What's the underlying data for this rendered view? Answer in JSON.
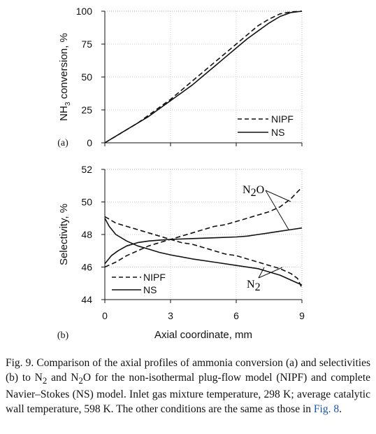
{
  "figure": {
    "caption": {
      "label": "Fig. 9.",
      "pre": "Comparison of the axial profiles of ammonia conversion (a) and selectivities (b) to N",
      "sub1": "2",
      "mid1": " and N",
      "sub2": "2",
      "mid2": "O for the non-isothermal plug-flow model (NIPF) and complete Navier–Stokes (NS) model. Inlet gas mixture temperature, 298 K; average catalytic wall temperature, 598 K. The other conditions are the same as those in ",
      "link": "Fig. 8",
      "post": "."
    }
  },
  "chart_data": [
    {
      "panel": "(a)",
      "type": "line",
      "ylabel_main": "NH",
      "ylabel_sub": "3",
      "ylabel_rest": " conversion, %",
      "xlabel": "",
      "xlim": [
        0,
        9
      ],
      "ylim": [
        0,
        100
      ],
      "yticks": [
        "0",
        "25",
        "50",
        "75",
        "100"
      ],
      "grid": true,
      "legend_position": "bottom-right",
      "series": [
        {
          "name": "NIPF",
          "style": "dashed",
          "x": [
            0,
            0.5,
            1,
            1.5,
            2,
            2.5,
            3,
            3.5,
            4,
            4.5,
            5,
            5.5,
            6,
            6.5,
            7,
            7.5,
            8,
            8.5,
            9
          ],
          "y": [
            0,
            5,
            10,
            15,
            21,
            27,
            33,
            40,
            47,
            54,
            61,
            68,
            75,
            82,
            89,
            94,
            98,
            99.5,
            100
          ]
        },
        {
          "name": "NS",
          "style": "solid",
          "x": [
            0,
            0.5,
            1,
            1.5,
            2,
            2.5,
            3,
            3.5,
            4,
            4.5,
            5,
            5.5,
            6,
            6.5,
            7,
            7.5,
            8,
            8.5,
            9
          ],
          "y": [
            0,
            5,
            10,
            15,
            20,
            26,
            32,
            38,
            44,
            51,
            58,
            65,
            72,
            79,
            85,
            91,
            96,
            99,
            100
          ]
        }
      ]
    },
    {
      "panel": "(b)",
      "type": "line",
      "ylabel": "Selectivity, %",
      "xlabel": "Axial coordinate, mm",
      "xlim": [
        0,
        9
      ],
      "ylim": [
        44,
        52
      ],
      "xticks": [
        "0",
        "3",
        "6",
        "9"
      ],
      "yticks": [
        "44",
        "46",
        "48",
        "50",
        "52"
      ],
      "grid": true,
      "legend_position": "bottom-left",
      "annotations": [
        {
          "label": "N",
          "sub": "2",
          "sup": "O"
        },
        {
          "label": "N",
          "sub": "2"
        }
      ],
      "series": [
        {
          "name": "NIPF",
          "curve": "N2O",
          "style": "dashed",
          "x": [
            0,
            0.5,
            1,
            1.5,
            2,
            2.5,
            3,
            3.5,
            4,
            4.5,
            5,
            5.5,
            6,
            6.5,
            7,
            7.5,
            8,
            8.5,
            9
          ],
          "y": [
            46.0,
            46.3,
            46.7,
            47.0,
            47.3,
            47.5,
            47.7,
            47.9,
            48.1,
            48.3,
            48.5,
            48.6,
            48.8,
            49.0,
            49.2,
            49.4,
            49.7,
            50.2,
            50.9
          ]
        },
        {
          "name": "NIPF",
          "curve": "N2",
          "style": "dashed",
          "x": [
            0,
            0.5,
            1,
            1.5,
            2,
            2.5,
            3,
            3.5,
            4,
            4.5,
            5,
            5.5,
            6,
            6.5,
            7,
            7.5,
            8,
            8.5,
            8.8,
            9
          ],
          "y": [
            49.1,
            48.7,
            48.5,
            48.3,
            48.1,
            47.9,
            47.7,
            47.5,
            47.4,
            47.2,
            47.0,
            46.8,
            46.7,
            46.5,
            46.3,
            46.1,
            45.9,
            45.6,
            45.3,
            44.7
          ]
        },
        {
          "name": "NS",
          "curve": "N2O",
          "style": "solid",
          "x": [
            0,
            0.3,
            0.6,
            1,
            1.5,
            2,
            2.5,
            3,
            4,
            5,
            6,
            6.5,
            7,
            7.5,
            8,
            8.5,
            9
          ],
          "y": [
            46.2,
            46.7,
            47.0,
            47.3,
            47.5,
            47.6,
            47.65,
            47.7,
            47.75,
            47.8,
            47.85,
            47.9,
            48.0,
            48.1,
            48.2,
            48.3,
            48.4
          ]
        },
        {
          "name": "NS",
          "curve": "N2",
          "style": "solid",
          "x": [
            0,
            0.2,
            0.5,
            1,
            1.5,
            2,
            2.5,
            3,
            4,
            5,
            6,
            7,
            7.5,
            8,
            8.5,
            9
          ],
          "y": [
            49.0,
            48.5,
            48.0,
            47.6,
            47.3,
            47.1,
            46.9,
            46.75,
            46.5,
            46.3,
            46.1,
            45.9,
            45.7,
            45.5,
            45.2,
            44.9
          ]
        }
      ]
    }
  ]
}
